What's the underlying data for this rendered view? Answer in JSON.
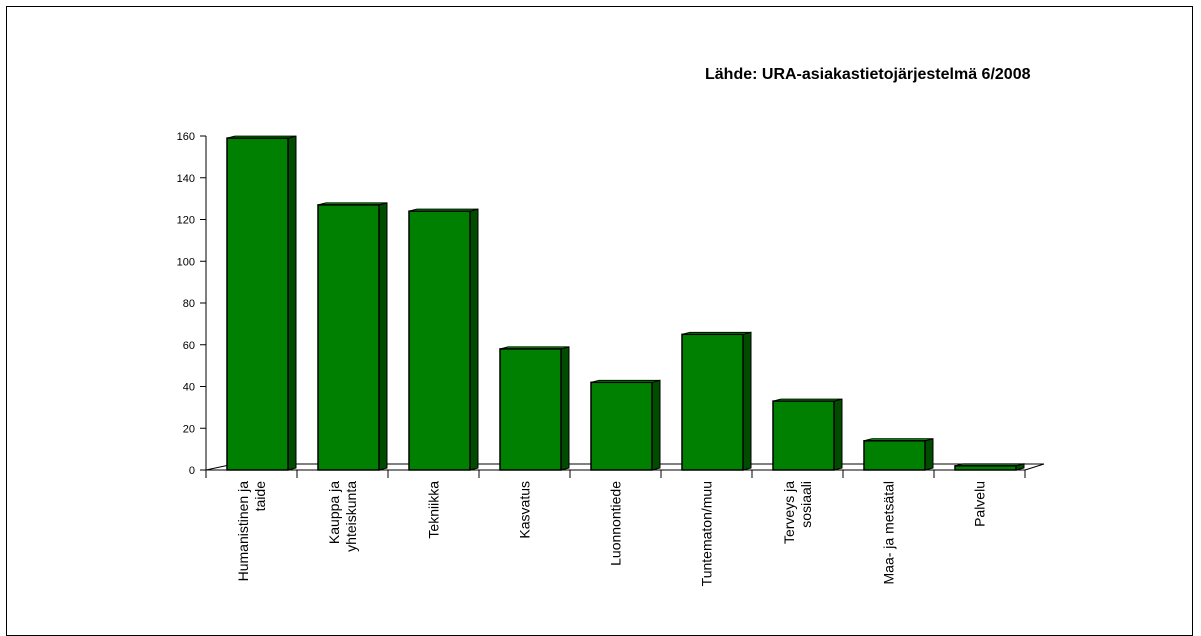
{
  "chart_data": {
    "type": "bar",
    "title": "",
    "source_note": "Lähde: URA-asiakastietojärjestelmä 6/2008",
    "xlabel": "",
    "ylabel": "",
    "ylim": [
      0,
      160
    ],
    "yticks": [
      "0",
      "20",
      "40",
      "60",
      "80",
      "100",
      "120",
      "140",
      "160"
    ],
    "categories": [
      [
        "Humanistinen ja",
        "taide"
      ],
      [
        "Kauppa ja",
        "yhteiskunta"
      ],
      [
        "Tekniikka"
      ],
      [
        "Kasvatus"
      ],
      [
        "Luonnontiede"
      ],
      [
        "Tuntematon/muu"
      ],
      [
        "Terveys ja",
        "sosiaali"
      ],
      [
        "Maa- ja metsätal"
      ],
      [
        "Palvelu"
      ]
    ],
    "values": [
      159,
      127,
      124,
      58,
      42,
      65,
      33,
      14,
      2
    ],
    "bar_style": "3d",
    "grid": false,
    "legend": "none",
    "colors": {
      "bar_front": "#008000",
      "bar_side": "#004d00",
      "bar_top": "#00b000",
      "outline": "#000000"
    }
  }
}
